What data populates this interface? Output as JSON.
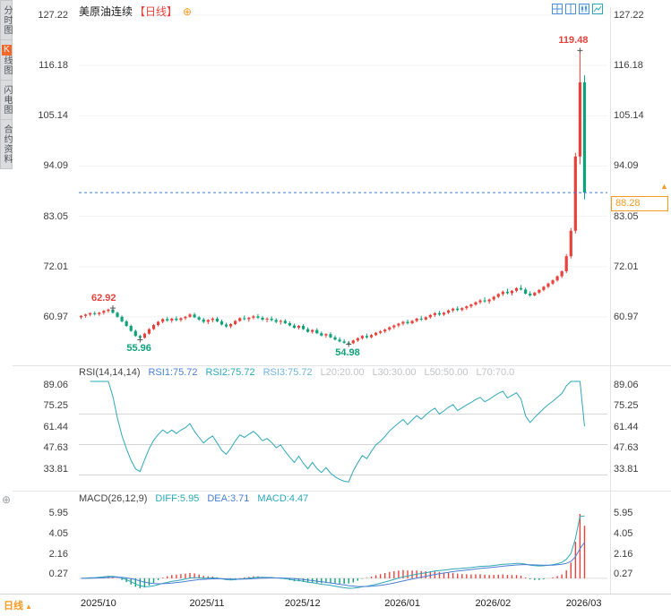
{
  "title": {
    "symbol": "美原油连续",
    "period": "【日线】"
  },
  "icons": {
    "add": "⊕",
    "dropdown_up": "▲",
    "latest_arrow": "▲"
  },
  "sidebar": {
    "tabs": [
      {
        "label": "分时图"
      },
      {
        "k": "K",
        "rest": "线图"
      },
      {
        "label": "闪电图"
      },
      {
        "label": "合约资料"
      }
    ]
  },
  "toolbar": {
    "icons": [
      "layout-quad-icon",
      "layout-dual-icon",
      "kline-view-icon",
      "line-view-icon"
    ]
  },
  "main_chart": {
    "y_ticks": [
      "127.22",
      "116.18",
      "105.14",
      "94.09",
      "83.05",
      "72.01",
      "60.97"
    ],
    "last_price_label": "88.28"
  },
  "rsi_panel": {
    "title": "RSI(14,14,14)",
    "rsi1": "RSI1:75.72",
    "rsi2": "RSI2:75.72",
    "rsi3": "RSI3:75.72",
    "l20": "L20:20.00",
    "l30": "L30:30.00",
    "l50": "L50:50.00",
    "l70": "L70:70.0",
    "y_ticks": [
      "89.06",
      "75.25",
      "61.44",
      "47.63",
      "33.81"
    ]
  },
  "macd_panel": {
    "title": "MACD(26,12,9)",
    "diff": "DIFF:5.95",
    "dea": "DEA:3.71",
    "macd": "MACD:4.47",
    "y_ticks": [
      "5.95",
      "4.05",
      "2.16",
      "0.27"
    ]
  },
  "footer": {
    "period_label": "日线"
  },
  "chart_data": {
    "type": "candlestick",
    "symbol": "美原油连续",
    "period": "日线",
    "x_labels": [
      "2025/10",
      "2025/11",
      "2025/12",
      "2026/01",
      "2026/02",
      "2026/03"
    ],
    "month_start_indices": [
      0,
      24,
      45,
      67,
      87,
      107
    ],
    "ylim": [
      52,
      128
    ],
    "last_price": 88.28,
    "annotations": [
      {
        "text": "62.92",
        "idx": 7,
        "price": 62.92,
        "placement": "above"
      },
      {
        "text": "55.96",
        "idx": 13,
        "price": 55.96,
        "placement": "below"
      },
      {
        "text": "54.98",
        "idx": 59,
        "price": 54.98,
        "placement": "below"
      },
      {
        "text": "119.48",
        "idx": 110,
        "price": 119.48,
        "placement": "above"
      }
    ],
    "indicators": {
      "rsi_periods": [
        14,
        14,
        14
      ],
      "rsi_levels": [
        70,
        50,
        30
      ],
      "macd_params": [
        26,
        12,
        9
      ],
      "rsi_values_shown": [
        75.72,
        75.72,
        75.72
      ],
      "macd_values_shown": {
        "diff": 5.95,
        "dea": 3.71,
        "macd": 4.47
      }
    },
    "colors": {
      "up": "#e8423c",
      "down": "#0ea17a",
      "rsi": "#2fa7b8",
      "diff": "#2fa7b8",
      "dea": "#4a7fd4",
      "price_line": "#3a7bd5",
      "accent": "#f59a23"
    },
    "candles_ohlc": [
      [
        60.9,
        61.4,
        60.5,
        61.2
      ],
      [
        61.2,
        61.7,
        60.8,
        61.5
      ],
      [
        61.5,
        62.0,
        61.1,
        61.8
      ],
      [
        61.8,
        62.2,
        61.3,
        61.6
      ],
      [
        61.6,
        62.1,
        61.2,
        61.9
      ],
      [
        61.9,
        62.5,
        61.5,
        62.3
      ],
      [
        62.3,
        62.8,
        61.9,
        62.6
      ],
      [
        62.6,
        62.92,
        61.7,
        61.9
      ],
      [
        61.9,
        62.1,
        60.8,
        61.0
      ],
      [
        61.0,
        61.3,
        59.8,
        60.0
      ],
      [
        60.0,
        60.3,
        58.8,
        59.0
      ],
      [
        59.0,
        59.3,
        57.7,
        57.9
      ],
      [
        57.9,
        58.2,
        56.6,
        56.8
      ],
      [
        56.8,
        57.1,
        55.96,
        56.4
      ],
      [
        56.4,
        57.5,
        56.2,
        57.3
      ],
      [
        57.3,
        58.5,
        57.1,
        58.3
      ],
      [
        58.3,
        59.4,
        58.1,
        59.2
      ],
      [
        59.2,
        60.1,
        58.9,
        59.9
      ],
      [
        59.9,
        60.7,
        59.6,
        60.5
      ],
      [
        60.5,
        61.0,
        59.9,
        60.2
      ],
      [
        60.2,
        60.8,
        59.7,
        60.6
      ],
      [
        60.6,
        61.1,
        60.0,
        60.3
      ],
      [
        60.3,
        60.9,
        59.9,
        60.7
      ],
      [
        60.7,
        61.2,
        60.3,
        61.0
      ],
      [
        61.0,
        61.8,
        60.8,
        61.5
      ],
      [
        61.5,
        61.9,
        60.7,
        60.9
      ],
      [
        60.9,
        61.2,
        60.1,
        60.4
      ],
      [
        60.4,
        60.8,
        59.6,
        59.9
      ],
      [
        59.9,
        60.5,
        59.4,
        60.3
      ],
      [
        60.3,
        60.9,
        59.8,
        60.6
      ],
      [
        60.6,
        61.0,
        59.8,
        60.0
      ],
      [
        60.0,
        60.4,
        59.1,
        59.3
      ],
      [
        59.3,
        59.7,
        58.6,
        58.9
      ],
      [
        58.9,
        59.6,
        58.5,
        59.4
      ],
      [
        59.4,
        60.3,
        59.2,
        60.1
      ],
      [
        60.1,
        60.9,
        59.9,
        60.7
      ],
      [
        60.7,
        61.3,
        60.2,
        60.5
      ],
      [
        60.5,
        61.0,
        59.9,
        60.8
      ],
      [
        60.8,
        61.4,
        60.4,
        61.1
      ],
      [
        61.1,
        61.6,
        60.5,
        60.8
      ],
      [
        60.8,
        61.2,
        60.1,
        60.4
      ],
      [
        60.4,
        60.9,
        59.8,
        60.6
      ],
      [
        60.6,
        61.1,
        60.0,
        60.3
      ],
      [
        60.3,
        60.7,
        59.6,
        59.9
      ],
      [
        59.9,
        60.4,
        59.3,
        60.1
      ],
      [
        60.1,
        60.5,
        59.4,
        59.6
      ],
      [
        59.6,
        60.0,
        58.9,
        59.1
      ],
      [
        59.1,
        59.5,
        58.4,
        58.6
      ],
      [
        58.6,
        59.2,
        58.2,
        59.0
      ],
      [
        59.0,
        59.4,
        58.1,
        58.3
      ],
      [
        58.3,
        58.7,
        57.5,
        57.7
      ],
      [
        57.7,
        58.3,
        57.3,
        58.1
      ],
      [
        58.1,
        58.5,
        57.2,
        57.4
      ],
      [
        57.4,
        57.8,
        56.7,
        56.9
      ],
      [
        56.9,
        57.4,
        56.4,
        57.2
      ],
      [
        57.2,
        57.6,
        56.3,
        56.5
      ],
      [
        56.5,
        56.9,
        55.8,
        56.0
      ],
      [
        56.0,
        56.5,
        55.4,
        55.6
      ],
      [
        55.6,
        56.1,
        55.1,
        55.3
      ],
      [
        55.3,
        55.7,
        54.98,
        55.2
      ],
      [
        55.2,
        56.0,
        55.0,
        55.8
      ],
      [
        55.8,
        56.5,
        55.5,
        56.3
      ],
      [
        56.3,
        57.0,
        56.0,
        56.8
      ],
      [
        56.8,
        57.3,
        56.2,
        56.5
      ],
      [
        56.5,
        57.2,
        56.3,
        57.0
      ],
      [
        57.0,
        57.7,
        56.8,
        57.5
      ],
      [
        57.5,
        58.1,
        57.2,
        57.8
      ],
      [
        57.8,
        58.4,
        57.4,
        58.2
      ],
      [
        58.2,
        58.9,
        57.9,
        58.7
      ],
      [
        58.7,
        59.3,
        58.3,
        59.1
      ],
      [
        59.1,
        59.7,
        58.7,
        59.5
      ],
      [
        59.5,
        60.1,
        59.1,
        59.9
      ],
      [
        59.9,
        60.4,
        59.3,
        59.6
      ],
      [
        59.6,
        60.3,
        59.4,
        60.1
      ],
      [
        60.1,
        60.8,
        59.8,
        60.6
      ],
      [
        60.6,
        61.2,
        60.1,
        60.4
      ],
      [
        60.4,
        61.1,
        60.2,
        60.9
      ],
      [
        60.9,
        61.6,
        60.6,
        61.4
      ],
      [
        61.4,
        62.0,
        61.0,
        61.8
      ],
      [
        61.8,
        62.3,
        61.2,
        61.5
      ],
      [
        61.5,
        62.1,
        61.2,
        61.9
      ],
      [
        61.9,
        62.6,
        61.6,
        62.4
      ],
      [
        62.4,
        63.0,
        62.0,
        62.8
      ],
      [
        62.8,
        63.3,
        62.2,
        62.5
      ],
      [
        62.5,
        63.1,
        62.2,
        62.9
      ],
      [
        62.9,
        63.5,
        62.5,
        63.3
      ],
      [
        63.3,
        63.9,
        62.9,
        63.7
      ],
      [
        63.7,
        64.4,
        63.4,
        64.2
      ],
      [
        64.2,
        64.9,
        63.8,
        64.6
      ],
      [
        64.6,
        65.3,
        64.1,
        64.4
      ],
      [
        64.4,
        65.0,
        63.9,
        64.8
      ],
      [
        64.8,
        65.6,
        64.5,
        65.4
      ],
      [
        65.4,
        66.2,
        65.1,
        66.0
      ],
      [
        66.0,
        66.8,
        65.6,
        66.5
      ],
      [
        66.5,
        67.2,
        65.9,
        66.2
      ],
      [
        66.2,
        66.9,
        65.7,
        66.7
      ],
      [
        66.7,
        67.5,
        66.4,
        67.3
      ],
      [
        67.3,
        68.0,
        66.8,
        67.0
      ],
      [
        67.0,
        67.4,
        65.9,
        66.1
      ],
      [
        66.1,
        66.6,
        65.4,
        65.7
      ],
      [
        65.7,
        66.5,
        65.5,
        66.3
      ],
      [
        66.3,
        67.1,
        66.0,
        66.9
      ],
      [
        66.9,
        67.8,
        66.6,
        67.6
      ],
      [
        67.6,
        68.5,
        67.3,
        68.3
      ],
      [
        68.3,
        69.2,
        68.0,
        69.0
      ],
      [
        69.0,
        70.1,
        68.7,
        69.9
      ],
      [
        69.9,
        71.2,
        69.5,
        71.0
      ],
      [
        71.0,
        74.8,
        70.6,
        74.3
      ],
      [
        74.3,
        80.5,
        73.8,
        79.9
      ],
      [
        79.9,
        97.0,
        79.3,
        96.2
      ],
      [
        96.2,
        119.48,
        94.5,
        112.5
      ],
      [
        112.5,
        114.0,
        86.8,
        88.28
      ]
    ]
  }
}
